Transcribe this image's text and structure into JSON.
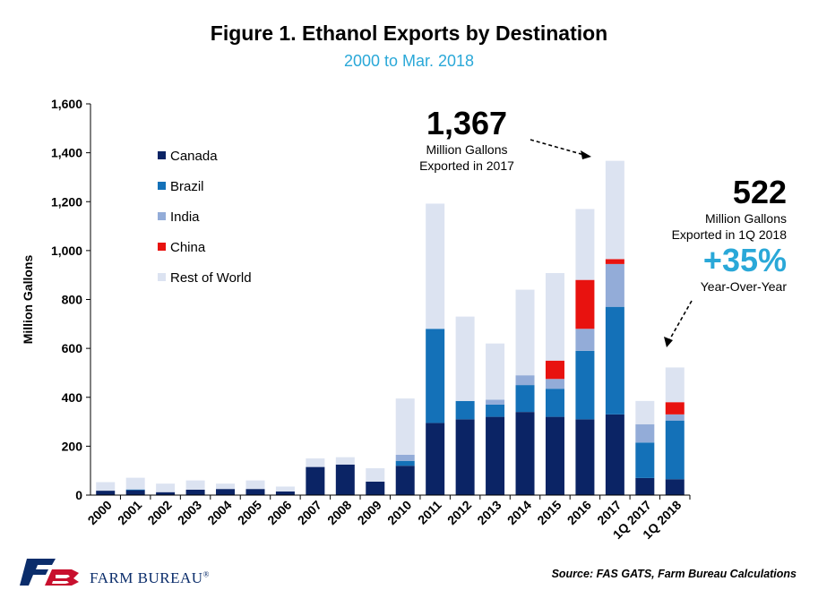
{
  "title": "Figure 1. Ethanol Exports by Destination",
  "subtitle": "2000 to Mar. 2018",
  "chart_data": {
    "type": "bar",
    "stacked": true,
    "categories": [
      "2000",
      "2001",
      "2002",
      "2003",
      "2004",
      "2005",
      "2006",
      "2007",
      "2008",
      "2009",
      "2010",
      "2011",
      "2012",
      "2013",
      "2014",
      "2015",
      "2016",
      "2017",
      "1Q 2017",
      "1Q 2018"
    ],
    "ylabel": "Million Gallons",
    "ylim": [
      0,
      1600
    ],
    "yticks": [
      "0",
      "200",
      "400",
      "600",
      "800",
      "1,000",
      "1,200",
      "1,400",
      "1,600"
    ],
    "ytick_values": [
      0,
      200,
      400,
      600,
      800,
      1000,
      1200,
      1400,
      1600
    ],
    "legend_position": "upper-left",
    "series": [
      {
        "name": "Canada",
        "color": "#0b2465",
        "values": [
          18,
          20,
          12,
          22,
          25,
          25,
          15,
          115,
          125,
          55,
          120,
          295,
          310,
          320,
          340,
          320,
          310,
          330,
          70,
          65
        ]
      },
      {
        "name": "Brazil",
        "color": "#1471b8",
        "values": [
          0,
          3,
          0,
          0,
          0,
          0,
          0,
          0,
          0,
          0,
          20,
          385,
          75,
          50,
          110,
          115,
          280,
          440,
          145,
          240
        ]
      },
      {
        "name": "India",
        "color": "#93acd8",
        "values": [
          0,
          0,
          0,
          0,
          0,
          0,
          0,
          0,
          0,
          0,
          25,
          0,
          0,
          20,
          40,
          40,
          90,
          175,
          75,
          25
        ]
      },
      {
        "name": "China",
        "color": "#e8120f",
        "values": [
          0,
          0,
          0,
          0,
          0,
          0,
          0,
          0,
          0,
          0,
          0,
          0,
          0,
          0,
          0,
          75,
          200,
          20,
          0,
          50
        ]
      },
      {
        "name": "Rest of World",
        "color": "#dce3f1",
        "values": [
          35,
          48,
          35,
          38,
          22,
          35,
          20,
          35,
          30,
          55,
          230,
          512,
          345,
          230,
          350,
          358,
          290,
          402,
          95,
          142
        ]
      }
    ],
    "grid": false
  },
  "annotations": {
    "total_2017": {
      "value": "1,367",
      "line1": "Million Gallons",
      "line2": "Exported in 2017"
    },
    "total_1q2018": {
      "value": "522",
      "line1": "Million Gallons",
      "line2": "Exported in 1Q 2018",
      "pct": "+35%",
      "line3": "Year-Over-Year"
    }
  },
  "source": "Source: FAS GATS, Farm Bureau Calculations",
  "logo_text": "FARM BUREAU",
  "logo_mark": "®"
}
